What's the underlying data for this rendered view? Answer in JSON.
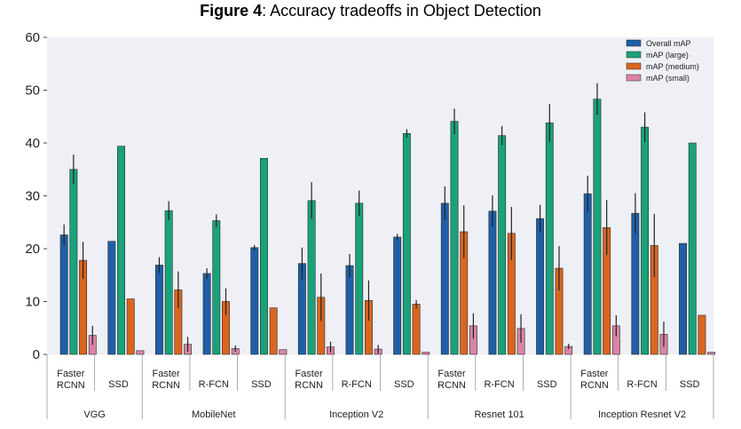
{
  "figure": {
    "title_bold": "Figure 4",
    "title_rest": ": Accuracy tradeoffs in Object Detection"
  },
  "chart_data": {
    "type": "bar",
    "title": "Figure 4: Accuracy tradeoffs in Object Detection",
    "xlabel": "",
    "ylabel": "",
    "ylim": [
      0,
      60
    ],
    "yticks": [
      0,
      10,
      20,
      30,
      40,
      50,
      60
    ],
    "grid": false,
    "legend_position": "top-right",
    "groups": [
      {
        "name": "VGG",
        "categories": [
          "Faster RCNN",
          "SSD"
        ]
      },
      {
        "name": "MobileNet",
        "categories": [
          "Faster RCNN",
          "R-FCN",
          "SSD"
        ]
      },
      {
        "name": "Inception V2",
        "categories": [
          "Faster RCNN",
          "R-FCN",
          "SSD"
        ]
      },
      {
        "name": "Resnet 101",
        "categories": [
          "Faster RCNN",
          "R-FCN",
          "SSD"
        ]
      },
      {
        "name": "Inception Resnet V2",
        "categories": [
          "Faster RCNN",
          "R-FCN",
          "SSD"
        ]
      }
    ],
    "categories": [
      "Faster RCNN",
      "SSD",
      "Faster RCNN",
      "R-FCN",
      "SSD",
      "Faster RCNN",
      "R-FCN",
      "SSD",
      "Faster RCNN",
      "R-FCN",
      "SSD",
      "Faster RCNN",
      "R-FCN",
      "SSD"
    ],
    "series": [
      {
        "name": "Overall mAP",
        "color": "#1f5fa8",
        "values": [
          22.6,
          21.4,
          16.9,
          15.3,
          20.2,
          17.2,
          16.8,
          22.2,
          28.6,
          27.1,
          25.7,
          30.4,
          26.7,
          21.0
        ],
        "errors": [
          2.0,
          0,
          1.5,
          1.0,
          0.5,
          3.0,
          2.2,
          0.6,
          3.2,
          3.0,
          2.6,
          3.4,
          3.8,
          0
        ]
      },
      {
        "name": "mAP (large)",
        "color": "#1aa27a",
        "values": [
          35.0,
          39.4,
          27.2,
          25.3,
          37.1,
          29.1,
          28.6,
          41.8,
          44.1,
          41.4,
          43.8,
          48.3,
          43.0,
          40.0
        ],
        "errors": [
          2.8,
          0,
          1.8,
          1.2,
          0,
          3.5,
          2.4,
          0.8,
          2.4,
          1.8,
          3.6,
          3.0,
          2.8,
          0
        ]
      },
      {
        "name": "mAP (medium)",
        "color": "#d9661f",
        "values": [
          17.8,
          10.5,
          12.2,
          10.0,
          8.8,
          10.8,
          10.2,
          9.5,
          23.2,
          22.9,
          16.3,
          24.0,
          20.6,
          7.4
        ],
        "errors": [
          3.5,
          0,
          3.5,
          2.5,
          0,
          4.5,
          3.8,
          0.8,
          5.0,
          5.0,
          4.2,
          5.2,
          6.0,
          0
        ]
      },
      {
        "name": "mAP (small)",
        "color": "#d985a3",
        "values": [
          3.6,
          0.7,
          1.9,
          1.1,
          0.9,
          1.4,
          1.0,
          0.4,
          5.4,
          4.9,
          1.5,
          5.4,
          3.8,
          0.4
        ],
        "errors": [
          1.8,
          0,
          1.4,
          0.6,
          0,
          1.0,
          0.8,
          0,
          2.4,
          2.7,
          0.5,
          2.0,
          2.4,
          0
        ]
      }
    ]
  }
}
